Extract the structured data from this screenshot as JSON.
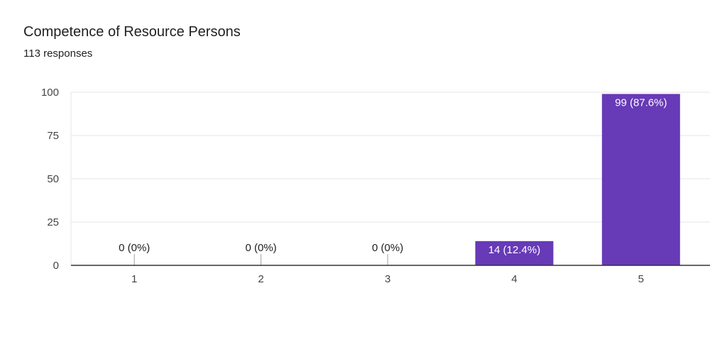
{
  "header": {
    "title": "Competence of Resource Persons",
    "responses": "113 responses"
  },
  "colors": {
    "bar": "#673ab7",
    "grid": "#e6e6e6",
    "axis": "#333333",
    "zero_tick": "#9e9e9e"
  },
  "chart_data": {
    "type": "bar",
    "title": "Competence of Resource Persons",
    "categories": [
      "1",
      "2",
      "3",
      "4",
      "5"
    ],
    "values": [
      0,
      0,
      0,
      14,
      99
    ],
    "labels": [
      "0 (0%)",
      "0 (0%)",
      "0 (0%)",
      "14 (12.4%)",
      "99 (87.6%)"
    ],
    "ylim": [
      0,
      100
    ],
    "yticks": [
      0,
      25,
      50,
      75,
      100
    ],
    "grid": true,
    "legend": "none"
  }
}
